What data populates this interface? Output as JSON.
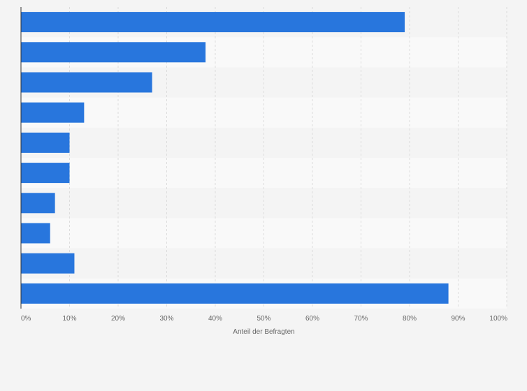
{
  "chart_data": {
    "type": "bar",
    "orientation": "horizontal",
    "categories": [
      "",
      "",
      "",
      "",
      "",
      "",
      "",
      "",
      "",
      ""
    ],
    "values": [
      79,
      38,
      27,
      13,
      10,
      10,
      7,
      6,
      11,
      88
    ],
    "xlabel": "Anteil der Befragten",
    "ylabel": "",
    "xlim": [
      0,
      100
    ],
    "xticks": [
      "0%",
      "10%",
      "20%",
      "30%",
      "40%",
      "50%",
      "60%",
      "70%",
      "80%",
      "90%",
      "100%"
    ],
    "grid": true,
    "legend": "none",
    "colors": {
      "bar": "#2876dd",
      "background": "#f4f4f4",
      "band_light": "#f9f9f9",
      "band_dark": "#f4f4f4",
      "grid": "#dddddd",
      "axis": "#333333",
      "text": "#666666"
    }
  }
}
